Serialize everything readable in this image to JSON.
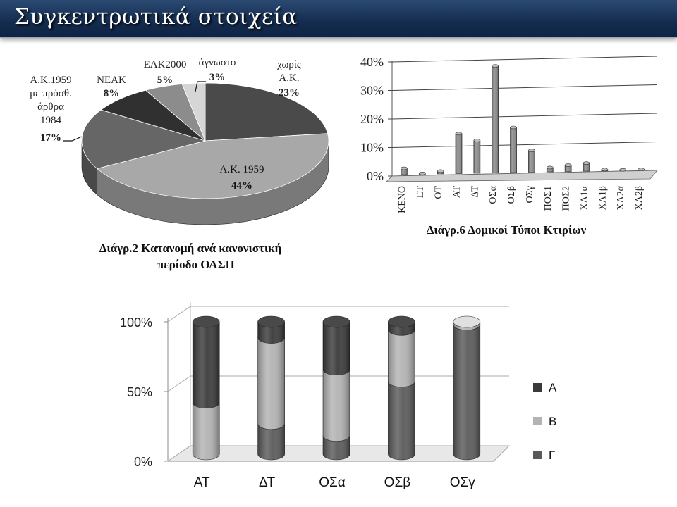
{
  "page_title": "Συγκεντρωτικά στοιχεία",
  "chart_data": [
    {
      "type": "pie",
      "caption": "Διάγρ.2 Κατανομή ανά κανονιστική περίοδο ΟΑΣΠ",
      "caption_lines": [
        "Διάγρ.2 Κατανομή ανά κανονιστική",
        "περίοδο ΟΑΣΠ"
      ],
      "slices": [
        {
          "label": "χωρίς Α.Κ.",
          "label_lines": [
            "χωρίς",
            "Α.Κ."
          ],
          "value": 23,
          "display": "23%",
          "color": "#4a4a4a"
        },
        {
          "label": "Α.Κ. 1959",
          "label_lines": [
            "Α.Κ. 1959"
          ],
          "value": 44,
          "display": "44%",
          "color": "#a8a8a8"
        },
        {
          "label": "Α.Κ.1959 με πρόσθ. άρθρα 1984",
          "label_lines": [
            "Α.Κ.1959",
            "με πρόσθ.",
            "άρθρα",
            "1984"
          ],
          "value": 17,
          "display": "17%",
          "color": "#666666"
        },
        {
          "label": "ΝΕΑΚ",
          "label_lines": [
            "ΝΕΑΚ"
          ],
          "value": 8,
          "display": "8%",
          "color": "#303030"
        },
        {
          "label": "ΕΑΚ2000",
          "label_lines": [
            "ΕΑΚ2000"
          ],
          "value": 5,
          "display": "5%",
          "color": "#8c8c8c"
        },
        {
          "label": "άγνωστο",
          "label_lines": [
            "άγνωστο"
          ],
          "value": 3,
          "display": "3%",
          "color": "#d6d6d6"
        }
      ]
    },
    {
      "type": "bar",
      "caption": "Διάγρ.6 Δομικοί Τύποι Κτιρίων",
      "categories": [
        "ΚΕΝΟ",
        "ΕΤ",
        "ΟΤ",
        "ΑΤ",
        "ΔΤ",
        "ΟΣα",
        "ΟΣβ",
        "ΟΣγ",
        "ΠΟΣ1",
        "ΠΟΣ2",
        "ΧΛ1α",
        "ΧΛ1β",
        "ΧΛ2α",
        "ΧΛ2β"
      ],
      "values": [
        2.2,
        0.3,
        1.0,
        14,
        11.5,
        37.5,
        15.8,
        7.6,
        1.5,
        2.2,
        2.8,
        0.4,
        0.2,
        0.2
      ],
      "ylim": [
        0,
        40
      ],
      "yticks": [
        0,
        10,
        20,
        30,
        40
      ],
      "ytick_labels": [
        "0%",
        "10%",
        "20%",
        "30%",
        "40%"
      ],
      "grid": true
    },
    {
      "type": "bar",
      "stacked": true,
      "percent": true,
      "categories": [
        "ΑΤ",
        "ΔΤ",
        "ΟΣα",
        "ΟΣβ",
        "ΟΣγ"
      ],
      "series": [
        {
          "name": "Γ",
          "values": [
            0,
            23,
            14,
            55,
            98
          ],
          "color": "#5a5a5a"
        },
        {
          "name": "Β",
          "values": [
            39,
            65,
            50,
            39,
            2
          ],
          "color": "#b3b3b3"
        },
        {
          "name": "Α",
          "values": [
            61,
            12,
            36,
            6,
            0
          ],
          "color": "#3a3a3a"
        }
      ],
      "ylim": [
        0,
        100
      ],
      "yticks": [
        0,
        50,
        100
      ],
      "ytick_labels": [
        "0%",
        "50%",
        "100%"
      ],
      "legend_order": [
        "Α",
        "Β",
        "Γ"
      ],
      "legend": "right",
      "grid": true
    }
  ]
}
